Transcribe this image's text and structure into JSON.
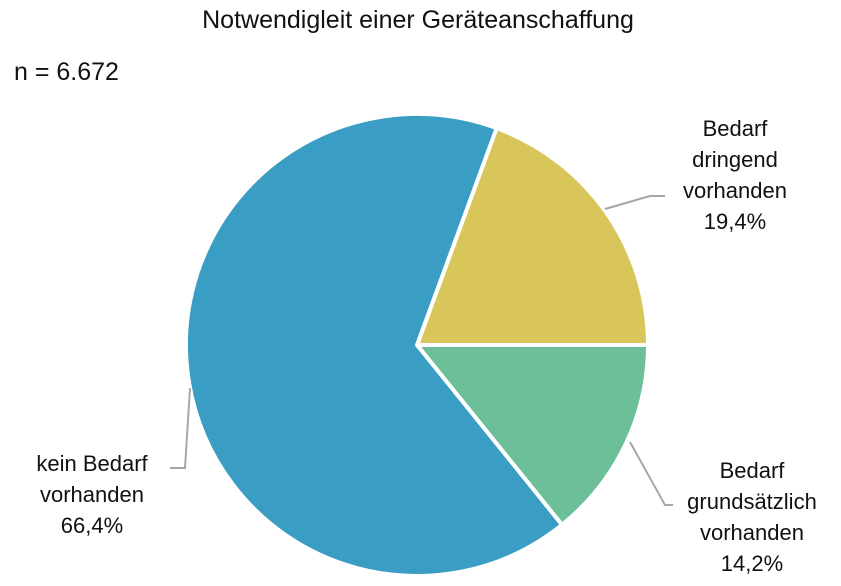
{
  "chart_data": {
    "type": "pie",
    "title": "Notwendigleit einer Geräteanschaffung",
    "subtitle": "n = 6.672",
    "slices": [
      {
        "label": [
          "Bedarf",
          "dringend",
          "vorhanden"
        ],
        "value": 19.4,
        "value_label": "19,4%",
        "color": "#D9C65A"
      },
      {
        "label": [
          "Bedarf",
          "grundsätzlich",
          "vorhanden"
        ],
        "value": 14.2,
        "value_label": "14,2%",
        "color": "#6DBF9A"
      },
      {
        "label": [
          "kein Bedarf",
          "vorhanden"
        ],
        "value": 66.4,
        "value_label": "66,4%",
        "color": "#3A9DC4"
      }
    ],
    "order": "clockwise",
    "legend": "none",
    "leader_line_color": "#A6A6A6"
  }
}
